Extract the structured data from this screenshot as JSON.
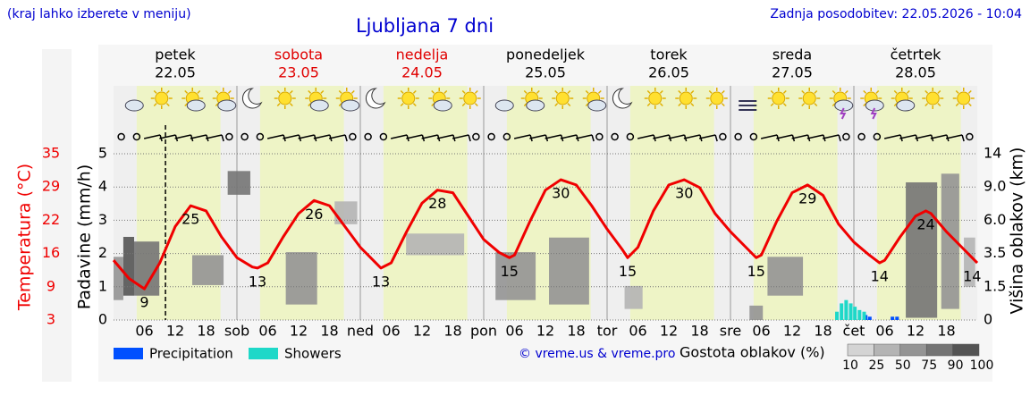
{
  "header": {
    "hint": "(kraj lahko izberete v meniju)",
    "title": "Ljubljana 7 dni",
    "updated": "Zadnja posodobitev: 22.05.2026 - 10:04"
  },
  "days": [
    {
      "name": "petek",
      "date": "22.05",
      "color": "#000000"
    },
    {
      "name": "sobota",
      "date": "23.05",
      "color": "#e00000"
    },
    {
      "name": "nedelja",
      "date": "24.05",
      "color": "#e00000"
    },
    {
      "name": "ponedeljek",
      "date": "25.05",
      "color": "#000000"
    },
    {
      "name": "torek",
      "date": "26.05",
      "color": "#000000"
    },
    {
      "name": "sreda",
      "date": "27.05",
      "color": "#000000"
    },
    {
      "name": "četrtek",
      "date": "28.05",
      "color": "#000000"
    }
  ],
  "chart_data": {
    "type": "weather",
    "xlim": [
      0,
      168
    ],
    "xticks": [
      {
        "value": 6,
        "label": "06"
      },
      {
        "value": 12,
        "label": "12"
      },
      {
        "value": 18,
        "label": "18"
      },
      {
        "value": 24,
        "label": "sob"
      },
      {
        "value": 30,
        "label": "06"
      },
      {
        "value": 36,
        "label": "12"
      },
      {
        "value": 42,
        "label": "18"
      },
      {
        "value": 48,
        "label": "ned"
      },
      {
        "value": 54,
        "label": "06"
      },
      {
        "value": 60,
        "label": "12"
      },
      {
        "value": 66,
        "label": "18"
      },
      {
        "value": 72,
        "label": "pon"
      },
      {
        "value": 78,
        "label": "06"
      },
      {
        "value": 84,
        "label": "12"
      },
      {
        "value": 90,
        "label": "18"
      },
      {
        "value": 96,
        "label": "tor"
      },
      {
        "value": 102,
        "label": "06"
      },
      {
        "value": 108,
        "label": "12"
      },
      {
        "value": 114,
        "label": "18"
      },
      {
        "value": 120,
        "label": "sre"
      },
      {
        "value": 126,
        "label": "06"
      },
      {
        "value": 132,
        "label": "12"
      },
      {
        "value": 138,
        "label": "18"
      },
      {
        "value": 144,
        "label": "čet"
      },
      {
        "value": 150,
        "label": "06"
      },
      {
        "value": 156,
        "label": "12"
      },
      {
        "value": 162,
        "label": "18"
      }
    ],
    "ylabel": "Padavine (mm/h)",
    "ylim": [
      0,
      5
    ],
    "yticks": [
      0,
      1,
      2,
      3,
      4,
      5
    ],
    "grid": true,
    "daylight": [
      4.5,
      20.8
    ],
    "now": 10.1,
    "temperature": {
      "label": "Temperatura (°C)",
      "color": "#f00000",
      "ylim": [
        3,
        35
      ],
      "yticks": [
        3,
        {
          "value": 9.4,
          "label": "9"
        },
        {
          "value": 15.8,
          "label": "16"
        },
        {
          "value": 22.2,
          "label": "22"
        },
        {
          "value": 28.6,
          "label": "29"
        },
        35
      ],
      "x": [
        0,
        3,
        6,
        9,
        12,
        15,
        18,
        21,
        24,
        27,
        28,
        30,
        33,
        36,
        39,
        42,
        45,
        48,
        51,
        52,
        54,
        57,
        60,
        63,
        66,
        69,
        72,
        75,
        77,
        78,
        81,
        84,
        87,
        90,
        93,
        96,
        99,
        100,
        102,
        105,
        108,
        111,
        114,
        117,
        120,
        123,
        125,
        126,
        129,
        132,
        135,
        138,
        141,
        144,
        147,
        149,
        150,
        153,
        156,
        158,
        159,
        162,
        165,
        168
      ],
      "values": [
        14.5,
        11,
        9,
        14,
        21,
        25,
        24,
        19,
        15,
        13.2,
        13,
        14,
        19,
        23.5,
        26,
        25,
        21,
        17,
        14,
        13,
        14,
        20,
        25.5,
        28,
        27.5,
        23,
        18.5,
        16,
        15,
        15.5,
        22,
        28,
        30,
        29,
        25,
        20.5,
        16.5,
        15,
        17,
        24,
        29,
        30,
        28.5,
        23.5,
        20,
        17,
        15,
        15.5,
        22,
        27.5,
        29,
        27,
        21.5,
        18,
        15.5,
        14,
        14.5,
        19,
        23,
        24,
        23.5,
        20,
        17,
        14
      ]
    },
    "extremes": {
      "x": [
        6,
        15,
        28,
        39,
        52,
        63,
        77,
        87,
        100,
        111,
        125,
        135,
        149,
        158,
        167
      ],
      "values": [
        9,
        25,
        13,
        26,
        13,
        28,
        15,
        30,
        15,
        30,
        15,
        29,
        14,
        24,
        14
      ]
    },
    "y2label": "Višina oblakov (km)",
    "y2ticks": [
      0,
      1.5,
      3.5,
      {
        "value": 6,
        "label": "6.0"
      },
      {
        "value": 9,
        "label": "9.0"
      },
      14
    ],
    "clouds": {
      "x": [
        1.9,
        4.0,
        0,
        22.2,
        15.3,
        33.5,
        43,
        74.3,
        84.7,
        56.9,
        99.4,
        127.2,
        154.1,
        161,
        123.7,
        165.4
      ],
      "x2": [
        4.0,
        8.9,
        1.9,
        26.6,
        21.4,
        39.6,
        47.4,
        82.1,
        92.5,
        68.2,
        102.9,
        134.1,
        160.2,
        164.5,
        126.3,
        167.6
      ],
      "base": [
        1.1,
        1.1,
        0.9,
        8.3,
        1.6,
        0.7,
        5.7,
        0.9,
        0.7,
        3.4,
        0.5,
        1.1,
        0.1,
        0.5,
        0,
        1.5
      ],
      "top": [
        4.75,
        4.4,
        3.3,
        11.4,
        3.4,
        3.6,
        7.7,
        3.6,
        4.7,
        5.0,
        1.55,
        3.3,
        9.7,
        11,
        0.65,
        4.7
      ],
      "density": [
        90,
        75,
        50,
        75,
        50,
        50,
        25,
        50,
        50,
        25,
        25,
        50,
        75,
        50,
        50,
        25
      ]
    },
    "series": [
      {
        "name": "Precipitation",
        "color": "#0050ff",
        "x": [
          146.3,
          147.1,
          151.5,
          152.4
        ],
        "values": [
          0.15,
          0.1,
          0.1,
          0.1
        ]
      },
      {
        "name": "Showers",
        "color": "#1ed8c8",
        "x": [
          140.7,
          141.6,
          142.5,
          143.4,
          144.2,
          145.1,
          146.0
        ],
        "values": [
          0.25,
          0.5,
          0.6,
          0.5,
          0.4,
          0.3,
          0.25
        ]
      }
    ],
    "credit": "© vreme.us & vreme.pro",
    "cloud_density": {
      "label": "Gostota oblakov (%)",
      "ticks": [
        10,
        25,
        50,
        75,
        90,
        100
      ],
      "colors": [
        "#d4d4d4",
        "#b4b4b4",
        "#949494",
        "#747474",
        "#545454"
      ]
    }
  }
}
